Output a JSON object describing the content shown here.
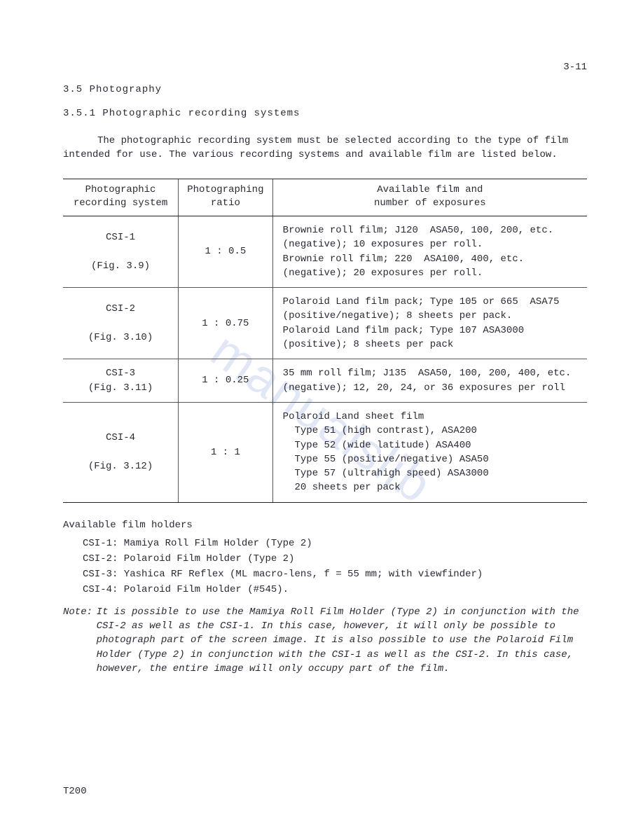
{
  "page_number": "3-11",
  "heading1": "3.5  Photography",
  "heading2": "3.5.1  Photographic recording systems",
  "intro": "The photographic recording system must be selected according to the type of film intended for use.  The various recording systems and available film are listed below.",
  "table": {
    "headers": {
      "c1a": "Photographic",
      "c1b": "recording system",
      "c2a": "Photographing",
      "c2b": "ratio",
      "c3a": "Available film and",
      "c3b": "number of exposures"
    },
    "rows": [
      {
        "system": "CSI-1",
        "fig": "(Fig. 3.9)",
        "ratio": "1 : 0.5",
        "film": "Brownie roll film; J120  ASA50, 100, 200, etc. (negative); 10 exposures per roll.\nBrownie roll film; 220  ASA100, 400, etc. (negative); 20 exposures per roll."
      },
      {
        "system": "CSI-2",
        "fig": "(Fig. 3.10)",
        "ratio": "1 : 0.75",
        "film": "Polaroid Land film pack; Type 105 or 665  ASA75 (positive/negative); 8 sheets per pack.\nPolaroid Land film pack; Type 107 ASA3000 (positive); 8 sheets per pack"
      },
      {
        "system": "CSI-3",
        "fig": "(Fig. 3.11)",
        "ratio": "1 : 0.25",
        "film": "35 mm roll film; J135  ASA50, 100, 200, 400, etc. (negative); 12, 20, 24, or 36 exposures per roll"
      },
      {
        "system": "CSI-4",
        "fig": "(Fig. 3.12)",
        "ratio": "1 : 1",
        "film": "Polaroid Land sheet film\n  Type 51 (high contrast), ASA200\n  Type 52 (wide latitude) ASA400\n  Type 55 (positive/negative) ASA50\n  Type 57 (ultrahigh speed) ASA3000\n  20 sheets per pack"
      }
    ]
  },
  "holders_title": "Available film holders",
  "holders": [
    "CSI-1: Mamiya Roll Film Holder (Type 2)",
    "CSI-2: Polaroid Film Holder    (Type 2)",
    "CSI-3: Yashica RF Reflex (ML macro-lens, f = 55 mm; with viewfinder)",
    "CSI-4: Polaroid Film Holder (#545)."
  ],
  "note_label": "Note:",
  "note_text": "It is possible to use the Mamiya Roll Film Holder (Type 2) in conjunction with the CSI-2 as well as the CSI-1.  In this case, however, it will only be possible to photograph part of the screen image.  It is also possible to use the Polaroid Film Holder (Type 2) in conjunction with the CSI-1 as well as the CSI-2.  In this case, however, the entire image will only occupy part of the film.",
  "footer": "T200",
  "watermark": "manualslib",
  "colors": {
    "text": "#2a2a35",
    "border": "#222222",
    "watermark": "rgba(90,120,200,0.18)",
    "background": "#ffffff"
  },
  "typography": {
    "font_family": "Courier New",
    "base_fontsize_pt": 11
  }
}
